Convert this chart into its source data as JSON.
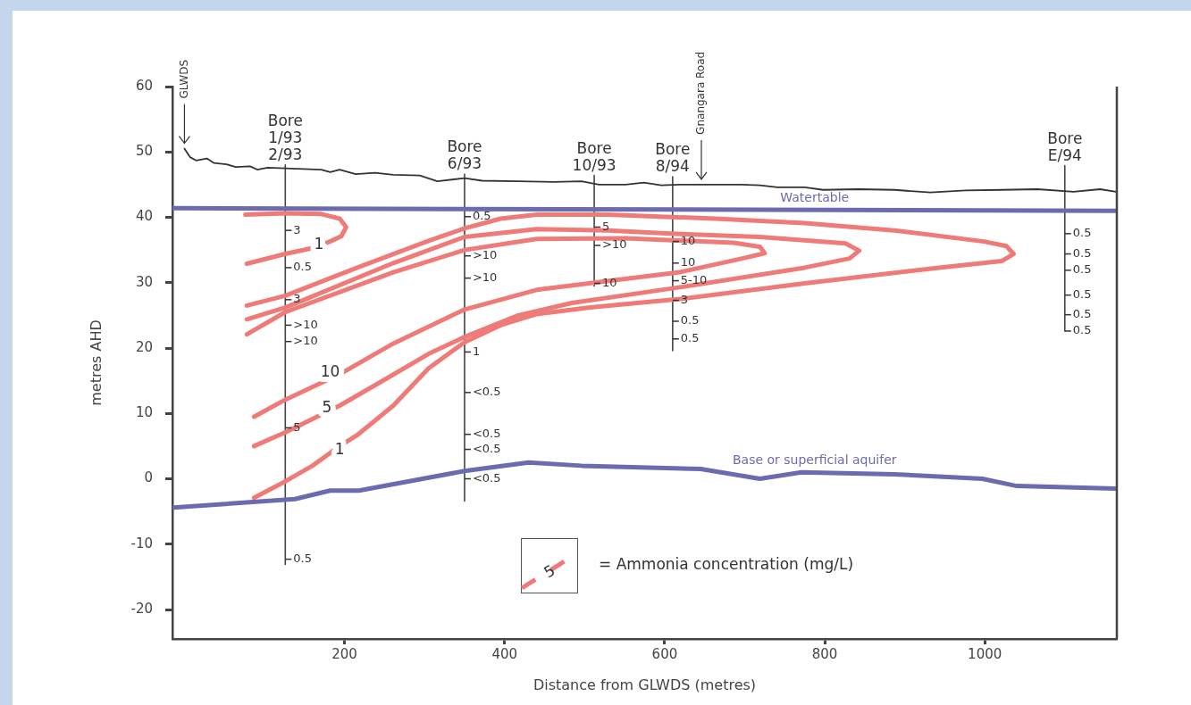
{
  "chart_data": {
    "type": "line",
    "xlabel": "Distance from GLWDS (metres)",
    "ylabel": "metres AHD",
    "xlim": [
      -15,
      1165
    ],
    "ylim": [
      -24.5,
      60
    ],
    "xticks": [
      200,
      400,
      600,
      800,
      1000
    ],
    "yticks": [
      -20,
      -10,
      0,
      10,
      20,
      30,
      40,
      50,
      60
    ],
    "grid": false,
    "legend": false,
    "marker": "none",
    "series": [
      {
        "color": "#333333",
        "x": [
          0,
          7,
          14.5,
          28,
          37,
          52.6,
          64,
          82,
          91,
          104,
          126,
          171,
          182,
          194,
          214,
          238,
          261,
          294,
          316,
          350,
          372,
          417,
          462,
          496,
          518,
          551,
          574,
          596,
          619,
          663,
          696,
          719,
          741,
          775,
          798,
          842,
          887,
          932,
          976,
          1021,
          1066,
          1111,
          1144,
          1164
        ],
        "values": [
          50.5,
          49.2,
          48.7,
          49,
          48.3,
          48.1,
          47.7,
          47.8,
          47.3,
          47.6,
          47.5,
          47.3,
          46.9,
          47.3,
          46.6,
          46.8,
          46.5,
          46.4,
          45.5,
          46,
          45.6,
          45.5,
          45.4,
          45.5,
          45,
          45,
          45.3,
          44.9,
          45,
          45,
          45,
          44.9,
          44.6,
          44.6,
          44.2,
          44.3,
          44.2,
          43.8,
          44.1,
          44.2,
          44.3,
          43.9,
          44.3,
          43.9
        ]
      },
      {
        "name": "Watertable",
        "color": "#6b6bb0",
        "x": [
          -15,
          1165
        ],
        "values": [
          41.4,
          41
        ]
      },
      {
        "name": "Base or superficial aquifer",
        "color": "#6b6bb0",
        "x": [
          -13.6,
          138,
          182,
          218,
          350,
          430,
          496,
          645,
          719,
          771,
          887,
          997,
          1040,
          1163
        ],
        "values": [
          -4.4,
          -3.1,
          -1.8,
          -1.8,
          1.2,
          2.5,
          2,
          1.5,
          0,
          1,
          0.7,
          0,
          -1.1,
          -1.5
        ]
      },
      {
        "color": "#ef7b78",
        "x": [
          76,
          126,
          171,
          194,
          202,
          196,
          182,
          160,
          126,
          78
        ],
        "values": [
          40.4,
          40.6,
          40.5,
          39.8,
          38.5,
          37.1,
          36.3,
          35.3,
          34.4,
          32.9
        ]
      },
      {
        "color": "#ef7b78",
        "x": [
          87,
          126,
          160,
          194,
          216,
          261,
          305,
          350,
          395,
          440,
          507,
          619,
          775,
          943,
          1021,
          1036,
          1027,
          999,
          887,
          775,
          663,
          529,
          440,
          395,
          350,
          305,
          216,
          126,
          78
        ],
        "values": [
          -2.9,
          -0.4,
          2,
          5,
          6.7,
          11.2,
          16.9,
          20.9,
          23.5,
          25.2,
          26.2,
          27.5,
          29.9,
          32.3,
          33.3,
          34.4,
          35.6,
          36.3,
          38,
          39.1,
          39.8,
          40.4,
          40.4,
          39.8,
          38.3,
          36.4,
          32.3,
          28,
          26.5
        ]
      },
      {
        "color": "#ef7b78",
        "x": [
          87,
          126,
          194,
          238,
          305,
          350,
          417,
          484,
          619,
          775,
          831,
          843,
          826,
          719,
          607,
          529,
          440,
          350,
          261,
          126,
          78
        ],
        "values": [
          5,
          7.1,
          11.2,
          14.3,
          19.1,
          21.7,
          25,
          26.9,
          29.3,
          32.3,
          33.7,
          34.9,
          36,
          37,
          37.5,
          38,
          38.2,
          37,
          33,
          26.2,
          24.4
        ]
      },
      {
        "color": "#ef7b78",
        "x": [
          87,
          126,
          194,
          261,
          350,
          440,
          512,
          619,
          697,
          725,
          719,
          686,
          551,
          440,
          350,
          261,
          126,
          78
        ],
        "values": [
          9.5,
          12.1,
          16,
          20.7,
          25.9,
          28.9,
          30,
          31.6,
          33.7,
          34.5,
          35.5,
          36.1,
          36.8,
          36.7,
          35,
          31.6,
          25.5,
          22.1
        ]
      },
      {
        "color": "#444444",
        "x": [
          126,
          126
        ],
        "values": [
          48,
          -13.1
        ]
      },
      {
        "color": "#444444",
        "x": [
          350,
          350
        ],
        "values": [
          46.6,
          -3.4
        ]
      },
      {
        "color": "#444444",
        "x": [
          512,
          512
        ],
        "values": [
          46.4,
          29.5
        ]
      },
      {
        "color": "#444444",
        "x": [
          610,
          610
        ],
        "values": [
          46.2,
          19.6
        ]
      },
      {
        "color": "#444444",
        "x": [
          1100,
          1100
        ],
        "values": [
          47.9,
          22.6
        ]
      }
    ],
    "annotations": [
      "GLWDS",
      "Gnangara Road",
      "Bore\n1/93\n2/93",
      "Bore\n6/93",
      "Bore\n10/93",
      "Bore\n8/94",
      "Bore\nE/94",
      {
        "text": "3",
        "x": 126,
        "y": 38
      },
      {
        "text": "0.5",
        "x": 126,
        "y": 32.3
      },
      {
        "text": "3",
        "x": 126,
        "y": 27.4
      },
      {
        "text": ">10",
        "x": 126,
        "y": 23.5
      },
      {
        "text": ">10",
        "x": 126,
        "y": 21
      },
      {
        "text": "5",
        "x": 126,
        "y": 7.8
      },
      {
        "text": "0.5",
        "x": 126,
        "y": -12.3
      },
      {
        "text": "0.5",
        "x": 350,
        "y": 40.1
      },
      {
        "text": ">10",
        "x": 350,
        "y": 34.1
      },
      {
        "text": ">10",
        "x": 350,
        "y": 30.7
      },
      {
        "text": "1",
        "x": 350,
        "y": 19.4
      },
      {
        "text": "<0.5",
        "x": 350,
        "y": 13.2
      },
      {
        "text": "<0.5",
        "x": 350,
        "y": 6.8
      },
      {
        "text": "<0.5",
        "x": 350,
        "y": 4.5
      },
      {
        "text": "<0.5",
        "x": 350,
        "y": 0
      },
      {
        "text": "5",
        "x": 512,
        "y": 38.5
      },
      {
        "text": ">10",
        "x": 512,
        "y": 35.7
      },
      {
        "text": "10",
        "x": 512,
        "y": 29.9
      },
      {
        "text": "10",
        "x": 610,
        "y": 36.3
      },
      {
        "text": "10",
        "x": 610,
        "y": 33
      },
      {
        "text": "5-10",
        "x": 610,
        "y": 30.3
      },
      {
        "text": "3",
        "x": 610,
        "y": 27.3
      },
      {
        "text": "0.5",
        "x": 610,
        "y": 24.1
      },
      {
        "text": "0.5",
        "x": 610,
        "y": 21.4
      },
      {
        "text": "0.5",
        "x": 1100,
        "y": 37.5
      },
      {
        "text": "0.5",
        "x": 1100,
        "y": 34.4
      },
      {
        "text": "0.5",
        "x": 1100,
        "y": 31.9
      },
      {
        "text": "0.5",
        "x": 1100,
        "y": 28.1
      },
      {
        "text": "0.5",
        "x": 1100,
        "y": 25.1
      },
      {
        "text": "0.5",
        "x": 1100,
        "y": 22.6
      },
      {
        "text": "1",
        "x": 168,
        "y": 35.7
      },
      {
        "text": "10",
        "x": 182,
        "y": 16.2
      },
      {
        "text": "5",
        "x": 178,
        "y": 10.8
      },
      {
        "text": "1",
        "x": 194,
        "y": 4.4
      },
      "5",
      "= Ammonia concentration (mg/L)"
    ]
  }
}
